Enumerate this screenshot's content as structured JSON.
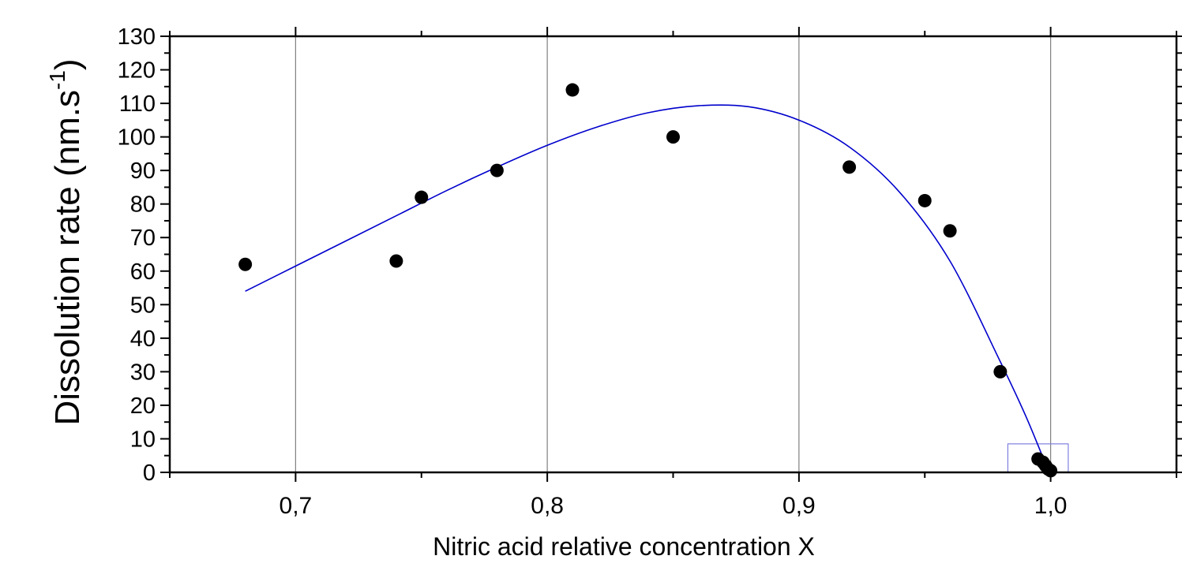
{
  "chart_data": {
    "type": "scatter",
    "title": "",
    "xlabel": "Nitric acid relative concentration X",
    "ylabel_main": "Dissolution rate (nm.s",
    "ylabel_sup": "-1",
    "ylabel_close": ")",
    "xlim": [
      0.65,
      1.05
    ],
    "ylim": [
      0,
      130
    ],
    "x_ticks": [
      0.7,
      0.8,
      0.9,
      1.0
    ],
    "x_tick_labels": [
      "0,7",
      "0,8",
      "0,9",
      "1,0"
    ],
    "y_ticks": [
      0,
      10,
      20,
      30,
      40,
      50,
      60,
      70,
      80,
      90,
      100,
      110,
      120,
      130
    ],
    "y_tick_labels": [
      "0",
      "10",
      "20",
      "30",
      "40",
      "50",
      "60",
      "70",
      "80",
      "90",
      "100",
      "110",
      "120",
      "130"
    ],
    "grid": "vertical major gridlines",
    "legend": "none",
    "points": {
      "x": [
        0.68,
        0.74,
        0.75,
        0.78,
        0.81,
        0.85,
        0.92,
        0.95,
        0.96,
        0.98,
        0.995,
        0.997,
        0.998,
        0.999,
        1.0
      ],
      "y": [
        62,
        63,
        82,
        90,
        114,
        100,
        91,
        81,
        72,
        30,
        4,
        3,
        2,
        1,
        0.5
      ]
    },
    "fit": {
      "x": [
        0.68,
        0.7,
        0.72,
        0.74,
        0.76,
        0.78,
        0.8,
        0.82,
        0.84,
        0.86,
        0.88,
        0.9,
        0.92,
        0.94,
        0.96,
        0.98,
        0.99,
        0.998
      ],
      "y": [
        54,
        61.5,
        69,
        76.5,
        84,
        91,
        97.5,
        103,
        107.2,
        109.3,
        109,
        105,
        97,
        83.5,
        63,
        33,
        17,
        2.5
      ]
    },
    "zoom_box": {
      "x": [
        0.983,
        1.007
      ],
      "y": [
        0,
        8.5
      ]
    },
    "colors": {
      "points": "#000000",
      "fit": "#0000cc",
      "grid": "#808080",
      "zoom_box": "#8080e0"
    }
  }
}
